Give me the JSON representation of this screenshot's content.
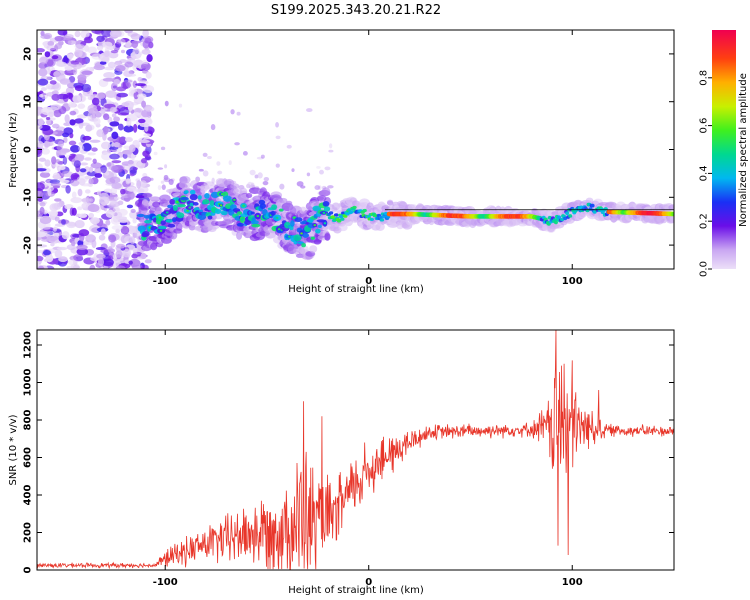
{
  "title": "S199.2025.343.20.21.R22",
  "chart_data": [
    {
      "type": "heatmap",
      "name": "spectrogram",
      "xlabel": "Height of straight line (km)",
      "ylabel": "Frequency (Hz)",
      "xlim": [
        -163,
        150
      ],
      "ylim": [
        -25,
        25
      ],
      "xticks": [
        -100,
        0,
        100
      ],
      "yticks": [
        20,
        10,
        0,
        -10,
        -20
      ],
      "colorbar": {
        "label": "Normalized spectral amplitude",
        "range": [
          0,
          1
        ],
        "ticks": [
          "0.0",
          "0.2",
          "0.4",
          "0.6",
          "0.8"
        ],
        "tick_values": [
          0,
          0.2,
          0.4,
          0.6,
          0.8
        ]
      },
      "track": [
        {
          "x": -110,
          "f": -16
        },
        {
          "x": -100,
          "f": -14.5
        },
        {
          "x": -90,
          "f": -11
        },
        {
          "x": -80,
          "f": -12
        },
        {
          "x": -70,
          "f": -11.5
        },
        {
          "x": -60,
          "f": -14
        },
        {
          "x": -50,
          "f": -13
        },
        {
          "x": -40,
          "f": -16
        },
        {
          "x": -30,
          "f": -18
        },
        {
          "x": -26,
          "f": -15
        },
        {
          "x": -22,
          "f": -13.5
        },
        {
          "x": -15,
          "f": -14.5
        },
        {
          "x": -8,
          "f": -12.5
        },
        {
          "x": -2,
          "f": -13.5
        },
        {
          "x": 5,
          "f": -14.5
        },
        {
          "x": 10,
          "f": -13.5
        },
        {
          "x": 20,
          "f": -13.5
        },
        {
          "x": 50,
          "f": -14
        },
        {
          "x": 80,
          "f": -14
        },
        {
          "x": 90,
          "f": -15
        },
        {
          "x": 100,
          "f": -13
        },
        {
          "x": 108,
          "f": -12
        },
        {
          "x": 115,
          "f": -13
        },
        {
          "x": 150,
          "f": -13.5
        }
      ]
    },
    {
      "type": "line",
      "name": "snr",
      "xlabel": "Height of straight line (km)",
      "ylabel": "SNR (10 * v/v)",
      "xlim": [
        -163,
        150
      ],
      "ylim": [
        0,
        1280
      ],
      "xticks": [
        -100,
        0,
        100
      ],
      "yticks": [
        0,
        200,
        400,
        600,
        800,
        1000,
        1200
      ],
      "color": "#e8362a",
      "envelope": [
        {
          "x": -163,
          "base": 25,
          "amp": 15
        },
        {
          "x": -105,
          "base": 25,
          "amp": 15
        },
        {
          "x": -100,
          "base": 60,
          "amp": 60
        },
        {
          "x": -80,
          "base": 140,
          "amp": 120
        },
        {
          "x": -60,
          "base": 190,
          "amp": 200
        },
        {
          "x": -45,
          "base": 210,
          "amp": 300
        },
        {
          "x": -32,
          "base": 260,
          "amp": 500
        },
        {
          "x": -25,
          "base": 250,
          "amp": 350
        },
        {
          "x": -18,
          "base": 280,
          "amp": 220
        },
        {
          "x": -8,
          "base": 430,
          "amp": 200
        },
        {
          "x": 0,
          "base": 540,
          "amp": 180
        },
        {
          "x": 10,
          "base": 610,
          "amp": 150
        },
        {
          "x": 20,
          "base": 680,
          "amp": 90
        },
        {
          "x": 30,
          "base": 735,
          "amp": 50
        },
        {
          "x": 80,
          "base": 750,
          "amp": 45
        },
        {
          "x": 88,
          "base": 760,
          "amp": 180
        },
        {
          "x": 93,
          "base": 800,
          "amp": 500
        },
        {
          "x": 100,
          "base": 770,
          "amp": 400
        },
        {
          "x": 105,
          "base": 760,
          "amp": 150
        },
        {
          "x": 112,
          "base": 760,
          "amp": 120
        },
        {
          "x": 118,
          "base": 745,
          "amp": 40
        },
        {
          "x": 150,
          "base": 740,
          "amp": 35
        }
      ],
      "peaks": [
        {
          "x": -32,
          "y": 900
        },
        {
          "x": -23,
          "y": 820
        },
        {
          "x": -2,
          "y": 680
        },
        {
          "x": 9,
          "y": 590
        },
        {
          "x": 92,
          "y": 1280
        },
        {
          "x": 96,
          "y": 1100
        },
        {
          "x": 93,
          "y": 130
        },
        {
          "x": 98,
          "y": 80
        },
        {
          "x": 113,
          "y": 960
        }
      ]
    }
  ]
}
